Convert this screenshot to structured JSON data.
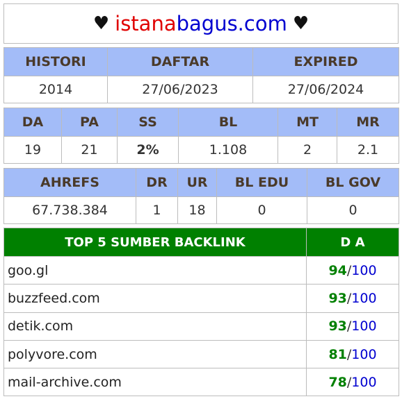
{
  "header": {
    "heart": "♥",
    "site_part1": "istana",
    "site_part2": "bagus.com"
  },
  "history": {
    "headers": [
      "HISTORI",
      "DAFTAR",
      "EXPIRED"
    ],
    "values": [
      "2014",
      "27/06/2023",
      "27/06/2024"
    ]
  },
  "metrics": {
    "headers": [
      "DA",
      "PA",
      "SS",
      "BL",
      "MT",
      "MR"
    ],
    "values": [
      "19",
      "21",
      "2%",
      "1.108",
      "2",
      "2.1"
    ]
  },
  "ahrefs": {
    "headers": [
      "AHREFS",
      "DR",
      "UR",
      "BL EDU",
      "BL GOV"
    ],
    "values": [
      "67.738.384",
      "1",
      "18",
      "0",
      "0"
    ]
  },
  "backlinks": {
    "title": "TOP 5 SUMBER BACKLINK",
    "da_header": "D A",
    "max": "100",
    "separator": "/",
    "rows": [
      {
        "domain": "goo.gl",
        "score": "94"
      },
      {
        "domain": "buzzfeed.com",
        "score": "93"
      },
      {
        "domain": "detik.com",
        "score": "93"
      },
      {
        "domain": "polyvore.com",
        "score": "81"
      },
      {
        "domain": "mail-archive.com",
        "score": "78"
      }
    ]
  },
  "colors": {
    "header_bg": "#a3bcf8",
    "backlink_header_bg": "#008000",
    "score_green": "#008000",
    "max_blue": "#0000d0",
    "brand_red": "#e00000"
  }
}
